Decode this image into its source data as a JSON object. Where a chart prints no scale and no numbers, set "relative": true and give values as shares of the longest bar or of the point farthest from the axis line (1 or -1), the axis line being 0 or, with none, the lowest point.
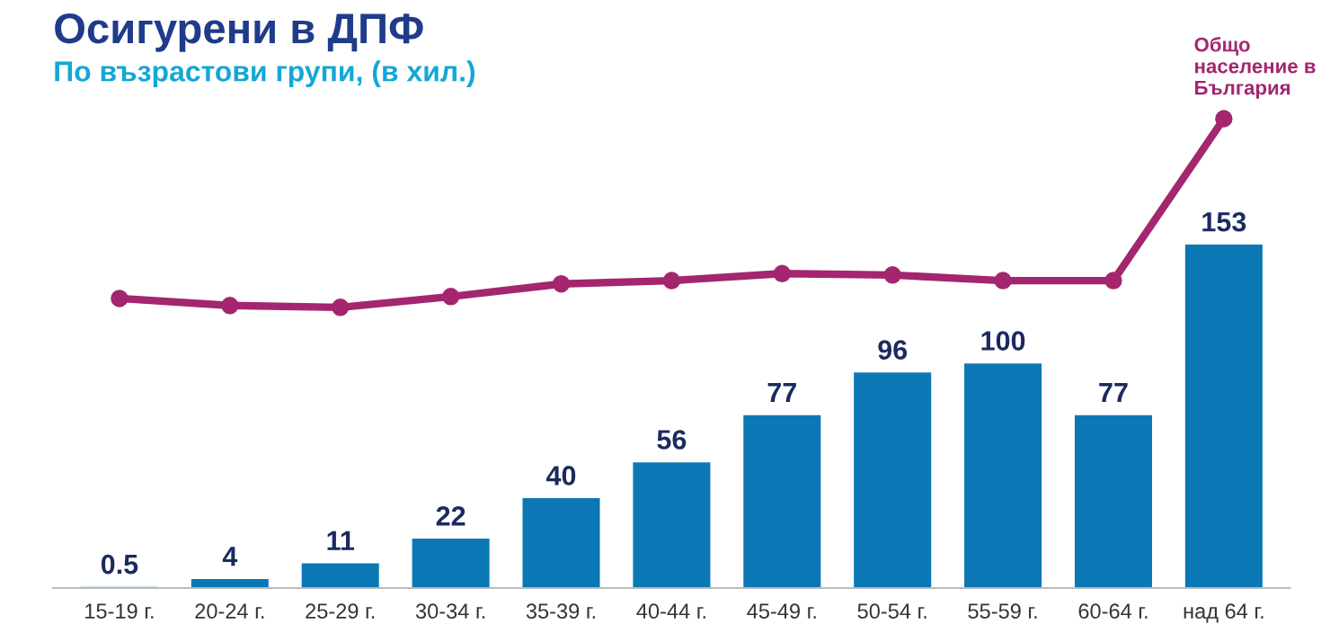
{
  "chart_data": [
    {
      "type": "bar",
      "title": "Осигурени в ДПФ",
      "subtitle": "По възрастови групи, (в хил.)",
      "categories": [
        "15-19 г.",
        "20-24 г.",
        "25-29 г.",
        "30-34 г.",
        "35-39 г.",
        "40-44 г.",
        "45-49 г.",
        "50-54 г.",
        "55-59 г.",
        "60-64 г.",
        "над 64 г."
      ],
      "series": [
        {
          "color": "#0b78b5",
          "values": [
            0.5,
            4,
            11,
            22,
            40,
            56,
            77,
            96,
            100,
            77,
            153
          ]
        }
      ],
      "data_labels": true,
      "tick_labels": "x",
      "grid": false
    },
    {
      "type": "line",
      "relative": true,
      "categories": [
        null,
        null,
        null,
        null,
        null,
        null,
        null,
        null,
        null,
        null,
        null
      ],
      "series": [
        {
          "name": "Общо\nнаселение в\nБългария",
          "color": "#a3266f",
          "values": [
            0.617,
            0.602,
            0.598,
            0.621,
            0.648,
            0.655,
            0.67,
            0.667,
            0.655,
            0.655,
            1
          ]
        }
      ],
      "marker": "circle",
      "tick_labels": false,
      "grid": false
    }
  ]
}
